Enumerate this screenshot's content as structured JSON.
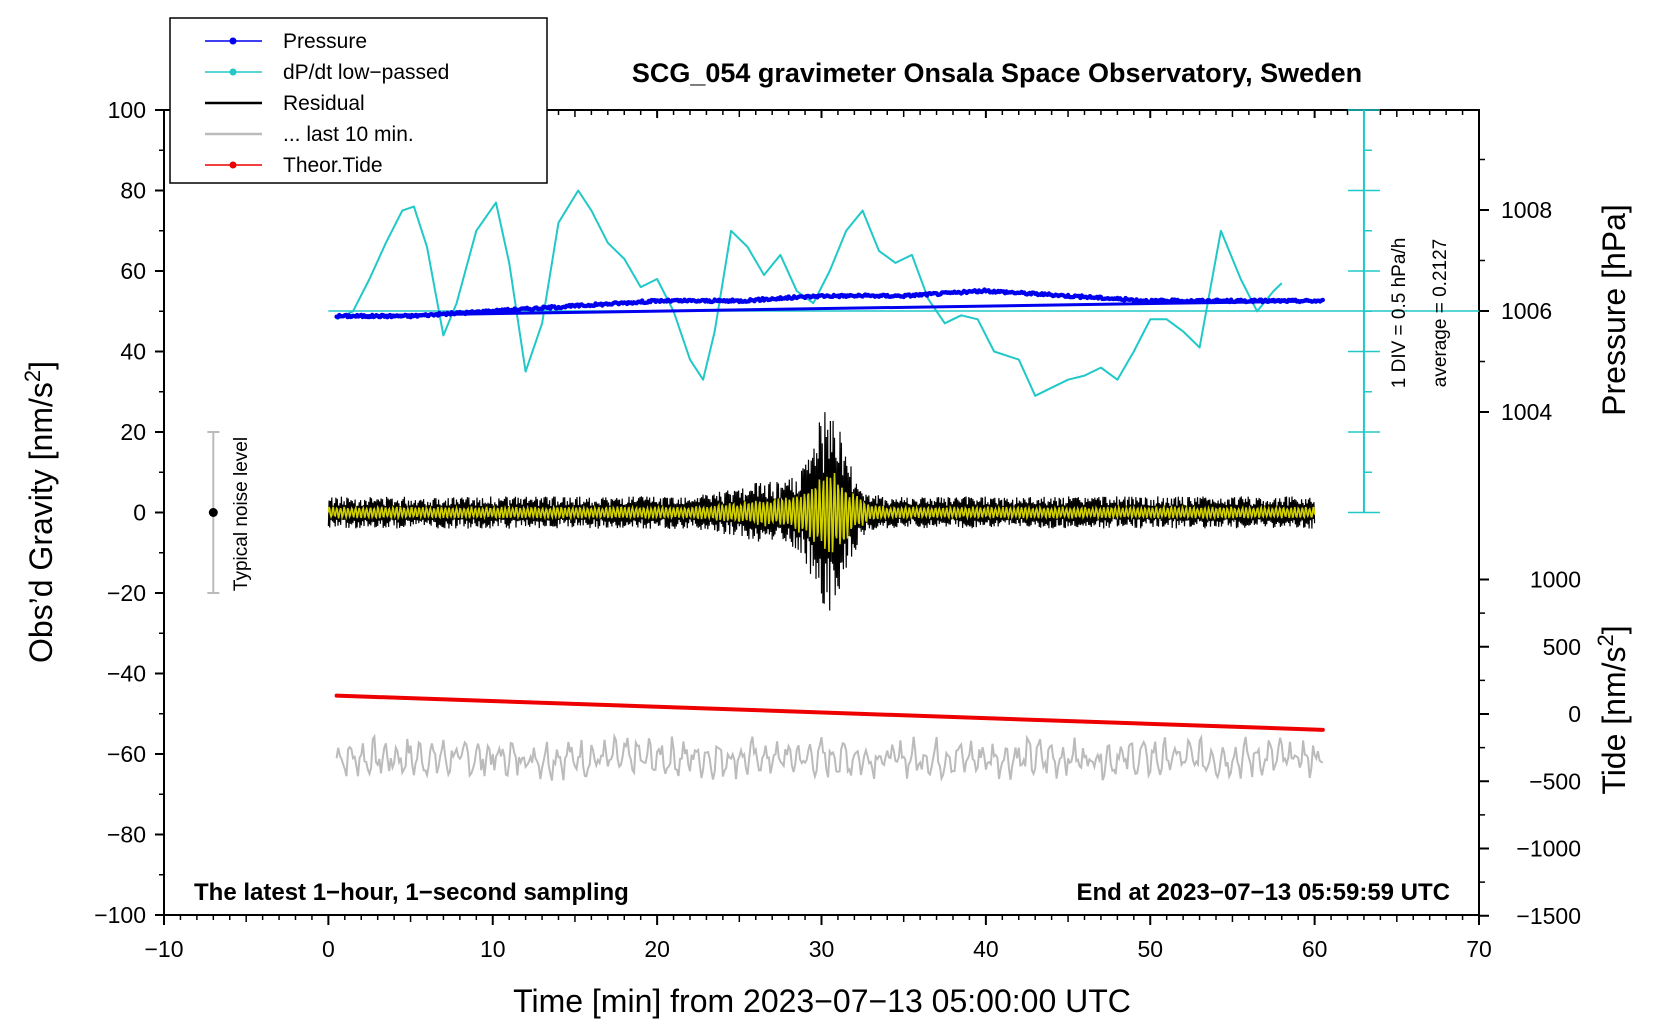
{
  "chart_data": {
    "type": "line",
    "title": "SCG_054 gravimeter Onsala Space Observatory, Sweden",
    "xlabel": "Time [min] from 2023−07−13 05:00:00 UTC",
    "ylabel": "Obs’d Gravity [nm/s",
    "ylabel_sup": "2",
    "ylabel_end": "]",
    "y2label": "Pressure [hPa]",
    "y3label": "Tide [nm/s",
    "y3label_sup": "2",
    "y3label_end": "]",
    "xlim": [
      -10,
      70
    ],
    "ylim": [
      -100,
      100
    ],
    "xticks": [
      "−10",
      "0",
      "10",
      "20",
      "30",
      "40",
      "50",
      "60",
      "70"
    ],
    "yticks": [
      "100",
      "80",
      "60",
      "40",
      "20",
      "0",
      "−20",
      "−40",
      "−60",
      "−80",
      "−100"
    ],
    "pressure_ticks": [
      "1008",
      "1006",
      "1004"
    ],
    "tide_ticks": [
      "1000",
      "500",
      "0",
      "−500",
      "−1000",
      "−1500"
    ],
    "legend": [
      {
        "label": "Pressure",
        "color": "#0000ee",
        "marker": true
      },
      {
        "label": "dP/dt low−passed",
        "color": "#20c8c8",
        "marker": true
      },
      {
        "label": "Residual",
        "color": "#000000",
        "marker": false
      },
      {
        "label": "... last 10 min.",
        "color": "#bbbbbb",
        "marker": false
      },
      {
        "label": "Theor.Tide",
        "color": "#ee0000",
        "marker": true
      }
    ],
    "annotations": {
      "left_note": "The latest 1−hour, 1−second sampling",
      "right_note": "End at 2023−07−13 05:59:59 UTC",
      "noise_label": "Typical noise level",
      "div_note": "1 DIV = 0.5 hPa/h",
      "average_note": "average = 0.2127"
    },
    "noise_bar": {
      "x": -7,
      "center": 0,
      "half_range": 20
    },
    "series": [
      {
        "name": "Pressure",
        "color": "#0000ee",
        "unit": "hPa",
        "x": [
          0.5,
          5,
          10,
          15,
          20,
          25,
          30,
          35,
          40,
          45,
          50,
          55,
          60.5
        ],
        "values": [
          1005.9,
          1005.9,
          1006.0,
          1006.1,
          1006.2,
          1006.2,
          1006.3,
          1006.3,
          1006.4,
          1006.3,
          1006.2,
          1006.2,
          1006.2
        ]
      },
      {
        "name": "dP/dt low−passed",
        "color": "#20c8c8",
        "unit": "nm/s2 axis",
        "x": [
          0.5,
          1.5,
          2.5,
          3.5,
          4.5,
          5.2,
          6,
          7,
          7.8,
          9,
          10.2,
          11,
          12,
          13,
          14,
          15.2,
          16,
          17,
          18,
          19,
          20,
          21,
          22,
          22.8,
          23.5,
          24.5,
          25.5,
          26.5,
          27.5,
          28.5,
          29.5,
          30.5,
          31.5,
          32.5,
          33.5,
          34.5,
          35.5,
          36.5,
          37.5,
          38.5,
          39.5,
          40.5,
          42,
          43,
          44,
          45,
          46,
          47,
          48,
          49,
          50,
          51,
          52,
          53,
          54.3,
          55.5,
          56.5,
          57.5,
          58
        ],
        "values": [
          48,
          50,
          58,
          67,
          75,
          76,
          66,
          44,
          52,
          70,
          77,
          62,
          35,
          47,
          72,
          80,
          75,
          67,
          63,
          56,
          58,
          50,
          38,
          33,
          45,
          70,
          66,
          59,
          64,
          55,
          52,
          60,
          70,
          75,
          65,
          62,
          64,
          53,
          47,
          49,
          48,
          40,
          38,
          29,
          31,
          33,
          34,
          36,
          33,
          40,
          48,
          48,
          45,
          41,
          70,
          58,
          50,
          55,
          57
        ]
      },
      {
        "name": "Residual",
        "color": "#000000",
        "unit": "nm/s2",
        "x": [
          0,
          60
        ],
        "amplitude_quiet": 4,
        "amplitude_peak": 24,
        "peak_x": 30.5
      },
      {
        "name": "Residual (filtered)",
        "color": "#d0d000",
        "unit": "nm/s2",
        "x": [
          0,
          60
        ],
        "amplitude_quiet": 1.5,
        "amplitude_peak": 10,
        "peak_x": 30.5
      },
      {
        "name": "... last 10 min.",
        "color": "#bbbbbb",
        "unit": "nm/s2",
        "x": [
          0,
          60
        ],
        "mean": -61,
        "amplitude": 4
      },
      {
        "name": "Theor.Tide",
        "color": "#ee0000",
        "unit": "nm/s2",
        "x": [
          0.5,
          60.5
        ],
        "values": [
          -45.5,
          -54
        ]
      }
    ]
  }
}
